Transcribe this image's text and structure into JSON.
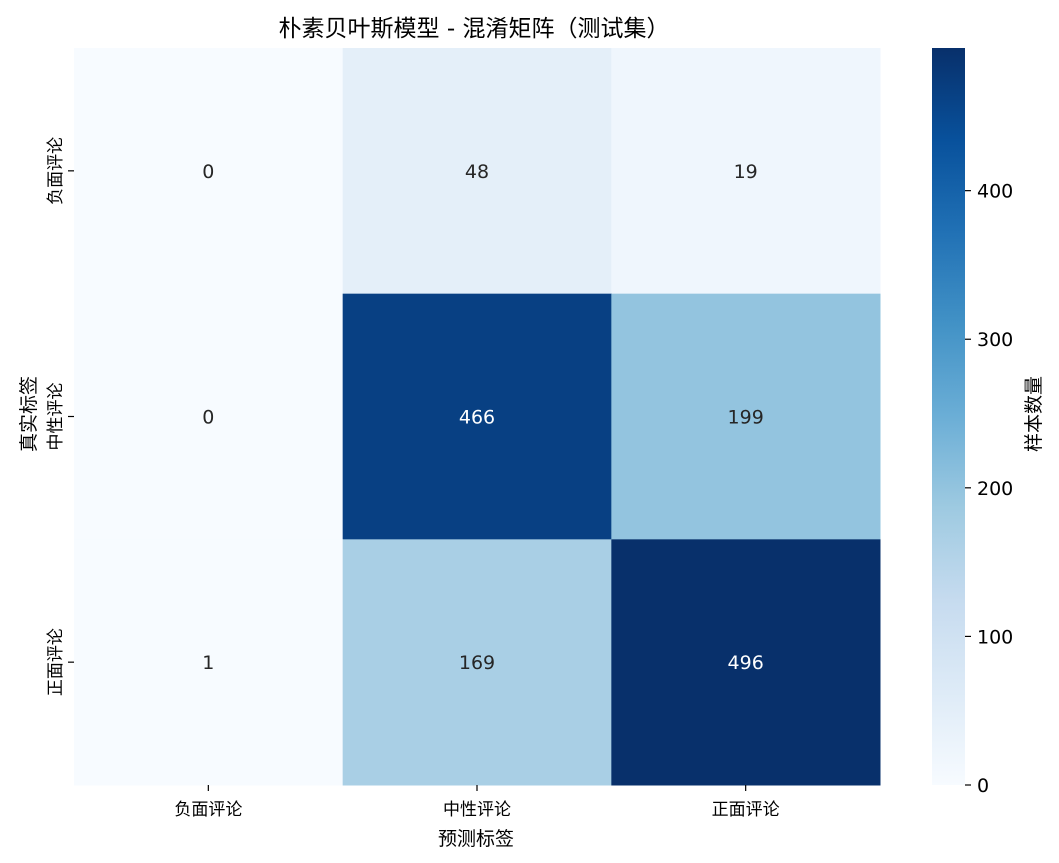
{
  "chart_data": {
    "type": "heatmap",
    "title": "朴素贝叶斯模型 - 混淆矩阵（测试集）",
    "xlabel": "预测标签",
    "ylabel": "真实标签",
    "x_categories": [
      "负面评论",
      "中性评论",
      "正面评论"
    ],
    "y_categories": [
      "负面评论",
      "中性评论",
      "正面评论"
    ],
    "values": [
      [
        0,
        48,
        19
      ],
      [
        0,
        466,
        199
      ],
      [
        1,
        169,
        496
      ]
    ],
    "colorbar": {
      "label": "样本数量",
      "range": [
        0,
        496
      ],
      "ticks": [
        0,
        100,
        200,
        300,
        400
      ]
    },
    "colormap": "Blues",
    "colors": {
      "low": "#f7fbff",
      "high": "#08306b",
      "text_dark": "#262626",
      "text_light": "#ffffff"
    }
  }
}
